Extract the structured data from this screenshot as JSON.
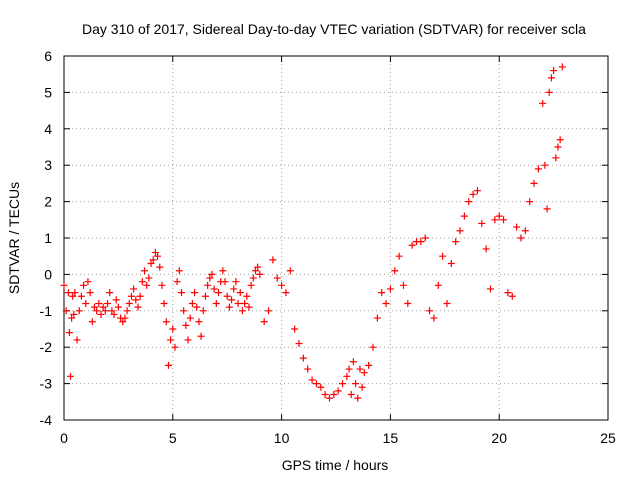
{
  "chart_data": {
    "type": "scatter",
    "title": "Day 310 of 2017, Sidereal Day-to-day VTEC variation (SDTVAR) for receiver scla",
    "xlabel": "GPS time / hours",
    "ylabel": "SDTVAR / TECUs",
    "xlim": [
      0,
      25
    ],
    "ylim": [
      -4,
      6
    ],
    "xticks": [
      "0",
      "5",
      "10",
      "15",
      "20",
      "25"
    ],
    "yticks": [
      "-4",
      "-3",
      "-2",
      "-1",
      "0",
      "1",
      "2",
      "3",
      "4",
      "5",
      "6"
    ],
    "grid": true,
    "marker": "+",
    "color": "#ff0000",
    "series": [
      {
        "name": "SDTVAR",
        "x": [
          0.0,
          0.1,
          0.2,
          0.25,
          0.3,
          0.35,
          0.4,
          0.45,
          0.5,
          0.6,
          0.7,
          0.8,
          0.9,
          1.0,
          1.1,
          1.2,
          1.3,
          1.4,
          1.5,
          1.6,
          1.7,
          1.8,
          1.9,
          2.0,
          2.1,
          2.2,
          2.3,
          2.4,
          2.5,
          2.6,
          2.7,
          2.8,
          2.9,
          3.0,
          3.1,
          3.2,
          3.3,
          3.4,
          3.5,
          3.6,
          3.7,
          3.8,
          3.9,
          4.0,
          4.1,
          4.2,
          4.3,
          4.4,
          4.5,
          4.6,
          4.7,
          4.8,
          4.9,
          5.0,
          5.1,
          5.2,
          5.3,
          5.4,
          5.5,
          5.6,
          5.7,
          5.8,
          5.9,
          6.0,
          6.1,
          6.2,
          6.3,
          6.4,
          6.5,
          6.6,
          6.7,
          6.8,
          6.9,
          7.0,
          7.1,
          7.2,
          7.3,
          7.4,
          7.5,
          7.6,
          7.7,
          7.8,
          7.9,
          8.0,
          8.1,
          8.2,
          8.3,
          8.4,
          8.5,
          8.6,
          8.7,
          8.8,
          8.9,
          9.0,
          9.2,
          9.4,
          9.6,
          9.8,
          10.0,
          10.2,
          10.4,
          10.6,
          10.8,
          11.0,
          11.2,
          11.4,
          11.6,
          11.8,
          12.0,
          12.2,
          12.4,
          12.6,
          12.8,
          13.0,
          13.1,
          13.2,
          13.3,
          13.4,
          13.5,
          13.6,
          13.7,
          13.8,
          14.0,
          14.2,
          14.4,
          14.6,
          14.8,
          15.0,
          15.2,
          15.4,
          15.6,
          15.8,
          16.0,
          16.2,
          16.4,
          16.6,
          16.8,
          17.0,
          17.2,
          17.4,
          17.6,
          17.8,
          18.0,
          18.2,
          18.4,
          18.6,
          18.8,
          19.0,
          19.2,
          19.4,
          19.6,
          19.8,
          20.0,
          20.2,
          20.4,
          20.6,
          20.8,
          21.0,
          21.2,
          21.4,
          21.6,
          21.8,
          22.0,
          22.1,
          22.2,
          22.3,
          22.4,
          22.5,
          22.6,
          22.7,
          22.8,
          22.9
        ],
        "y": [
          -0.3,
          -1.0,
          -0.5,
          -1.6,
          -2.8,
          -1.2,
          -0.6,
          -1.1,
          -0.5,
          -1.8,
          -1.0,
          -0.6,
          -0.3,
          -0.8,
          -0.2,
          -0.5,
          -1.3,
          -0.9,
          -1.0,
          -0.8,
          -1.1,
          -0.9,
          -1.0,
          -0.8,
          -0.5,
          -1.0,
          -1.1,
          -0.7,
          -0.9,
          -1.2,
          -1.3,
          -1.2,
          -1.0,
          -0.8,
          -0.6,
          -0.4,
          -0.7,
          -0.9,
          -0.6,
          -0.2,
          0.1,
          -0.3,
          -0.1,
          0.3,
          0.4,
          0.6,
          0.5,
          0.2,
          -0.3,
          -0.8,
          -1.3,
          -2.5,
          -1.8,
          -1.5,
          -2.0,
          -0.2,
          0.1,
          -0.5,
          -1.0,
          -1.4,
          -1.8,
          -1.2,
          -0.8,
          -0.5,
          -0.9,
          -1.3,
          -1.7,
          -1.0,
          -0.6,
          -0.3,
          -0.1,
          0.0,
          -0.4,
          -0.8,
          -0.5,
          -0.2,
          0.1,
          -0.2,
          -0.6,
          -0.9,
          -0.7,
          -0.4,
          -0.2,
          -0.8,
          -0.5,
          -1.0,
          -0.8,
          -0.6,
          -0.9,
          -0.3,
          -0.1,
          0.1,
          0.2,
          0.0,
          -1.3,
          -1.0,
          0.4,
          -0.1,
          -0.3,
          -0.5,
          0.1,
          -1.5,
          -1.9,
          -2.3,
          -2.6,
          -2.9,
          -3.0,
          -3.1,
          -3.3,
          -3.4,
          -3.3,
          -3.2,
          -3.0,
          -2.8,
          -2.6,
          -3.3,
          -2.4,
          -3.0,
          -3.4,
          -2.6,
          -3.1,
          -2.7,
          -2.5,
          -2.0,
          -1.2,
          -0.5,
          -0.8,
          -0.4,
          0.1,
          0.5,
          -0.3,
          -0.8,
          0.8,
          0.9,
          0.9,
          1.0,
          -1.0,
          -1.2,
          -0.3,
          0.5,
          -0.8,
          0.3,
          0.9,
          1.2,
          1.6,
          2.0,
          2.2,
          2.3,
          1.4,
          0.7,
          -0.4,
          1.5,
          1.6,
          1.5,
          -0.5,
          -0.6,
          1.3,
          1.0,
          1.2,
          2.0,
          2.5,
          2.9,
          4.7,
          3.0,
          1.8,
          5.0,
          5.4,
          5.6,
          3.2,
          3.5,
          3.7,
          5.7
        ]
      }
    ]
  }
}
